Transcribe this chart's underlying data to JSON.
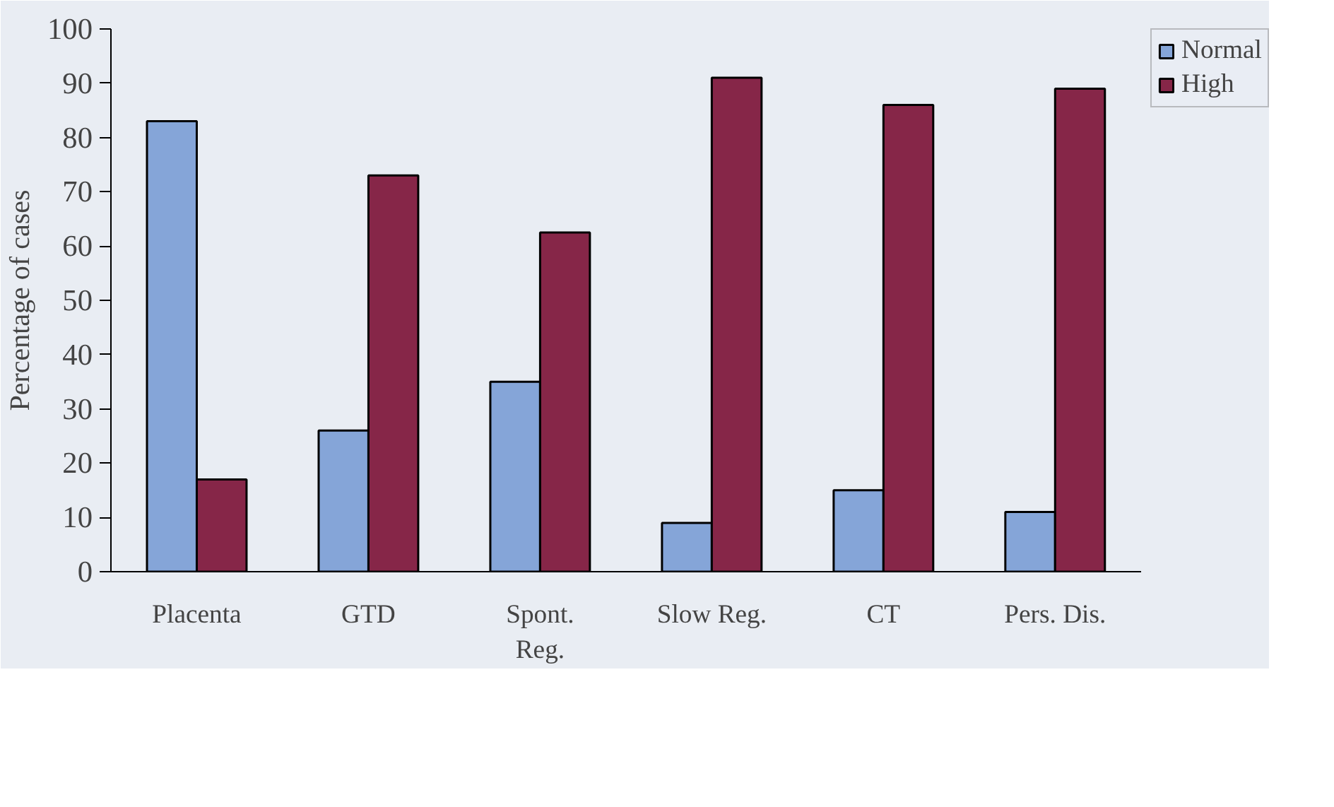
{
  "chart_data": {
    "type": "bar",
    "ylabel": "Percentage of cases",
    "categories": [
      "Placenta",
      "GTD",
      "Spont.\nReg.",
      "Slow Reg.",
      "CT",
      "Pers. Dis."
    ],
    "series": [
      {
        "name": "Normal",
        "color": "#85a5d8",
        "values": [
          83,
          26,
          35,
          9,
          15,
          11
        ]
      },
      {
        "name": "High",
        "color": "#862648",
        "values": [
          17,
          73,
          62.5,
          91,
          86,
          89
        ]
      }
    ],
    "ylim": [
      0,
      100
    ],
    "yticks": [
      0,
      10,
      20,
      30,
      40,
      50,
      60,
      70,
      80,
      90,
      100
    ],
    "grid": false,
    "legend": "top right"
  }
}
